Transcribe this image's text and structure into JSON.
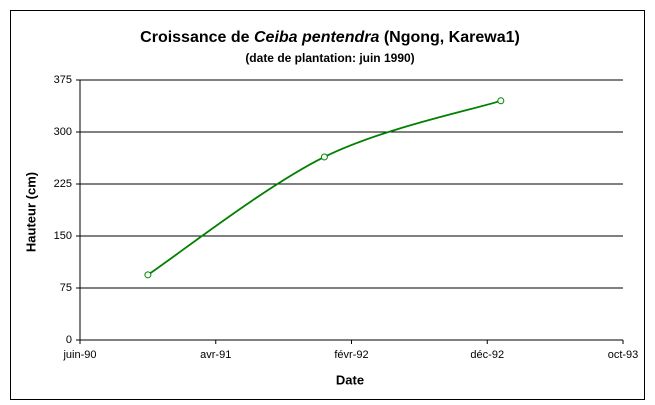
{
  "chart_data": {
    "type": "line",
    "title_parts": [
      "Croissance de",
      "Ceiba pentendra",
      "(Ngong, Karewa1)"
    ],
    "subtitle": "(date de plantation: juin 1990)",
    "xlabel": "Date",
    "ylabel": "Hauteur (cm)",
    "x": [
      "1990-11",
      "1991-12",
      "1993-01"
    ],
    "series": [
      {
        "name": "Hauteur",
        "color": "#008000",
        "values": [
          94,
          264,
          345
        ]
      }
    ],
    "xlim": [
      "1990-06",
      "1993-10"
    ],
    "xticks": [
      {
        "value": "1990-06",
        "label": "juin-90"
      },
      {
        "value": "1991-04",
        "label": "avr-91"
      },
      {
        "value": "1992-02",
        "label": "févr-92"
      },
      {
        "value": "1992-12",
        "label": "déc-92"
      },
      {
        "value": "1993-10",
        "label": "oct-93"
      }
    ],
    "ylim": [
      0,
      375
    ],
    "yticks": [
      0,
      75,
      150,
      225,
      300,
      375
    ],
    "grid": true
  }
}
